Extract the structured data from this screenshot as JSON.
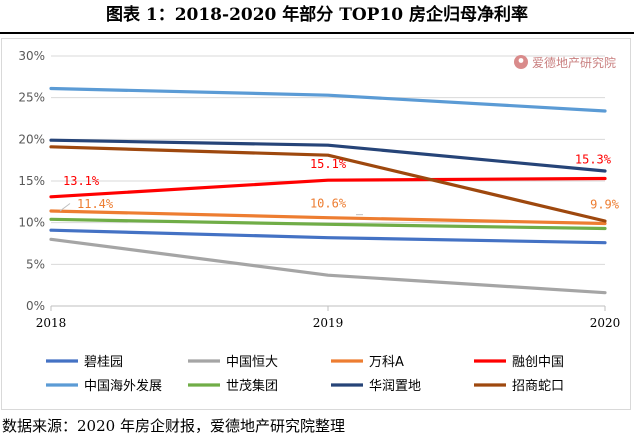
{
  "title": "图表 1：2018-2020 年部分 TOP10 房企归母净利率",
  "source": "数据来源：2020 年房企财报，爱德地产研究院整理",
  "watermark": {
    "text": "爱德地产研究院",
    "icon": "pin-icon",
    "color": "#d98b8b"
  },
  "chart_data": {
    "type": "line",
    "categories": [
      "2018",
      "2019",
      "2020"
    ],
    "ylim": [
      0,
      30
    ],
    "yticks": [
      0,
      5,
      10,
      15,
      20,
      25,
      30
    ],
    "ytick_labels": [
      "0%",
      "5%",
      "10%",
      "15%",
      "20%",
      "25%",
      "30%"
    ],
    "grid": true,
    "legend_position": "bottom",
    "series": [
      {
        "name": "碧桂园",
        "color": "#4472c4",
        "values": [
          9.1,
          8.2,
          7.6
        ]
      },
      {
        "name": "中国恒大",
        "color": "#a5a5a5",
        "values": [
          8.0,
          3.7,
          1.6
        ]
      },
      {
        "name": "万科A",
        "color": "#ed7d31",
        "values": [
          11.4,
          10.6,
          9.9
        ]
      },
      {
        "name": "融创中国",
        "color": "#ff0000",
        "values": [
          13.1,
          15.1,
          15.3
        ]
      },
      {
        "name": "中国海外发展",
        "color": "#5b9bd5",
        "values": [
          26.1,
          25.3,
          23.4
        ]
      },
      {
        "name": "世茂集团",
        "color": "#70ad47",
        "values": [
          10.4,
          9.8,
          9.3
        ]
      },
      {
        "name": "华润置地",
        "color": "#264478",
        "values": [
          19.9,
          19.3,
          16.2
        ]
      },
      {
        "name": "招商蛇口",
        "color": "#9e480e",
        "values": [
          19.1,
          18.1,
          10.2
        ]
      }
    ],
    "annotations": [
      {
        "text": "13.1%",
        "series": "融创中国",
        "category": "2018",
        "color": "#ff0000"
      },
      {
        "text": "15.1%",
        "series": "融创中国",
        "category": "2019",
        "color": "#ff0000"
      },
      {
        "text": "15.3%",
        "series": "融创中国",
        "category": "2020",
        "color": "#ff0000"
      },
      {
        "text": "11.4%",
        "series": "万科A",
        "category": "2018",
        "color": "#ed7d31"
      },
      {
        "text": "10.6%",
        "series": "万科A",
        "category": "2019",
        "color": "#ed7d31"
      },
      {
        "text": "9.9%",
        "series": "万科A",
        "category": "2020",
        "color": "#ed7d31"
      }
    ]
  }
}
